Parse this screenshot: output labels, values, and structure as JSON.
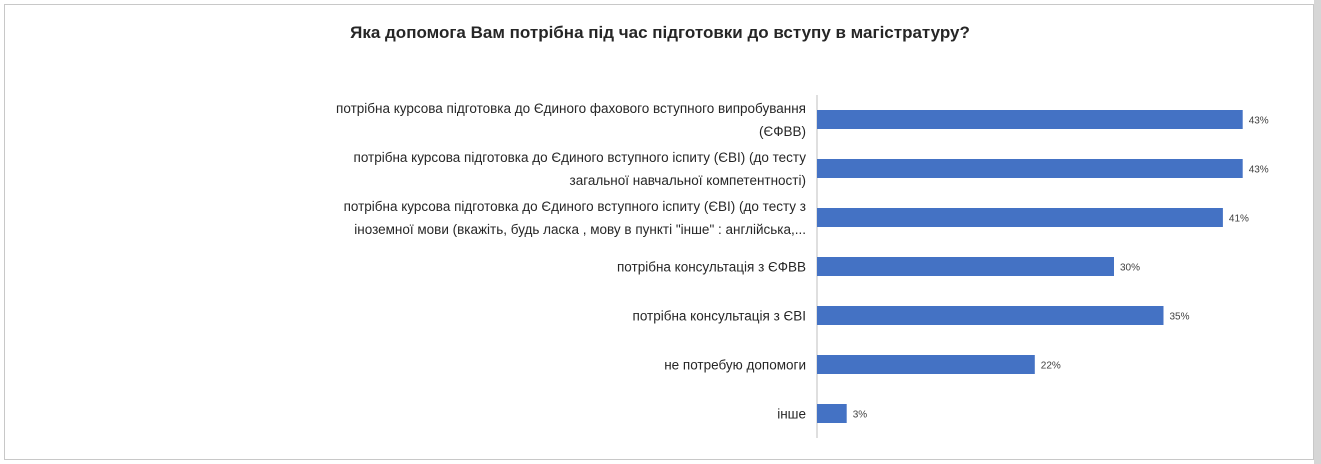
{
  "chart_data": {
    "type": "bar",
    "orientation": "horizontal",
    "title": "Яка допомога Вам потрібна під час підготовки до вступу в магістратуру?",
    "categories": [
      [
        "потрібна курсова підготовка до Єдиного фахового вступного випробування",
        "(ЄФВВ)"
      ],
      [
        "потрібна курсова підготовка до Єдиного вступного іспиту (ЄВІ) (до тесту",
        "загальної навчальної компетентності)"
      ],
      [
        "потрібна курсова підготовка до Єдиного вступного іспиту (ЄВІ) (до тесту з",
        "іноземної мови (вкажіть, будь ласка , мову в пункті  \"інше\" : англійська,..."
      ],
      [
        "потрібна консультація з ЄФВВ"
      ],
      [
        "потрібна консультація з ЄВІ"
      ],
      [
        "не потребую допомоги"
      ],
      [
        "інше"
      ]
    ],
    "values": [
      43,
      43,
      41,
      30,
      35,
      22,
      3
    ],
    "value_labels": [
      "43%",
      "43%",
      "41%",
      "30%",
      "35%",
      "22%",
      "3%"
    ],
    "unit": "%",
    "xlim": [
      0,
      100
    ],
    "grid": false,
    "legend": "none",
    "bar_color": "#4472C4",
    "axis_color": "#bfbfbf"
  }
}
